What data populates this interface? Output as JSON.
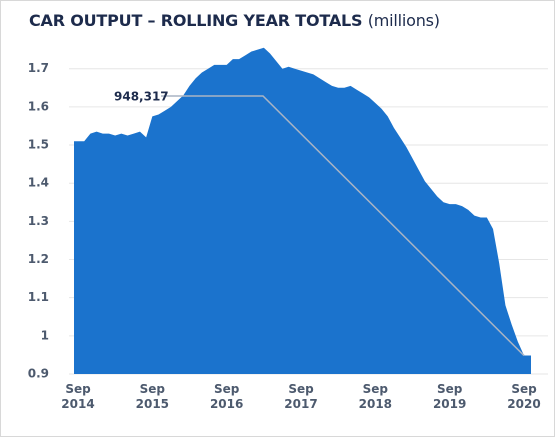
{
  "chart_data": {
    "type": "area",
    "title": "CAR OUTPUT – ROLLING YEAR TOTALS",
    "subtitle": "(millions)",
    "categories": [
      "Sep 2014",
      null,
      null,
      null,
      null,
      null,
      null,
      null,
      null,
      null,
      null,
      null,
      "Sep 2015",
      null,
      null,
      null,
      null,
      null,
      null,
      null,
      null,
      null,
      null,
      null,
      "Sep 2016",
      null,
      null,
      null,
      null,
      null,
      null,
      null,
      null,
      null,
      null,
      null,
      "Sep 2017",
      null,
      null,
      null,
      null,
      null,
      null,
      null,
      null,
      null,
      null,
      null,
      "Sep 2018",
      null,
      null,
      null,
      null,
      null,
      null,
      null,
      null,
      null,
      null,
      null,
      "Sep 2019",
      null,
      null,
      null,
      null,
      null,
      null,
      null,
      null,
      null,
      null,
      null,
      "Sep 2020"
    ],
    "values": [
      1.51,
      1.51,
      1.53,
      1.535,
      1.53,
      1.53,
      1.525,
      1.53,
      1.525,
      1.53,
      1.535,
      1.52,
      1.575,
      1.58,
      1.59,
      1.6,
      1.615,
      1.63,
      1.655,
      1.675,
      1.69,
      1.7,
      1.71,
      1.71,
      1.71,
      1.725,
      1.725,
      1.735,
      1.745,
      1.75,
      1.755,
      1.74,
      1.72,
      1.7,
      1.705,
      1.7,
      1.695,
      1.69,
      1.685,
      1.675,
      1.665,
      1.655,
      1.65,
      1.65,
      1.655,
      1.645,
      1.635,
      1.625,
      1.61,
      1.595,
      1.575,
      1.545,
      1.52,
      1.495,
      1.465,
      1.435,
      1.405,
      1.385,
      1.365,
      1.35,
      1.345,
      1.345,
      1.34,
      1.33,
      1.315,
      1.31,
      1.31,
      1.28,
      1.19,
      1.08,
      1.03,
      0.985,
      0.948317
    ],
    "value_labels": [
      null,
      null,
      null,
      null,
      null,
      null,
      null,
      null,
      null,
      null,
      null,
      null,
      null,
      null,
      null,
      null,
      null,
      null,
      null,
      null,
      null,
      null,
      null,
      null,
      null,
      null,
      null,
      null,
      null,
      null,
      null,
      null,
      null,
      null,
      null,
      null,
      null,
      null,
      null,
      null,
      null,
      null,
      null,
      null,
      null,
      null,
      null,
      null,
      null,
      null,
      null,
      null,
      null,
      null,
      null,
      null,
      null,
      null,
      null,
      null,
      null,
      null,
      null,
      null,
      null,
      null,
      null,
      null,
      null,
      null,
      null,
      null,
      "948,317"
    ],
    "color": "#1b73cd",
    "ylim": [
      0.9,
      1.77
    ],
    "yticks": [
      0.9,
      1,
      1.1,
      1.2,
      1.3,
      1.4,
      1.5,
      1.6,
      1.7
    ],
    "grid": true
  }
}
